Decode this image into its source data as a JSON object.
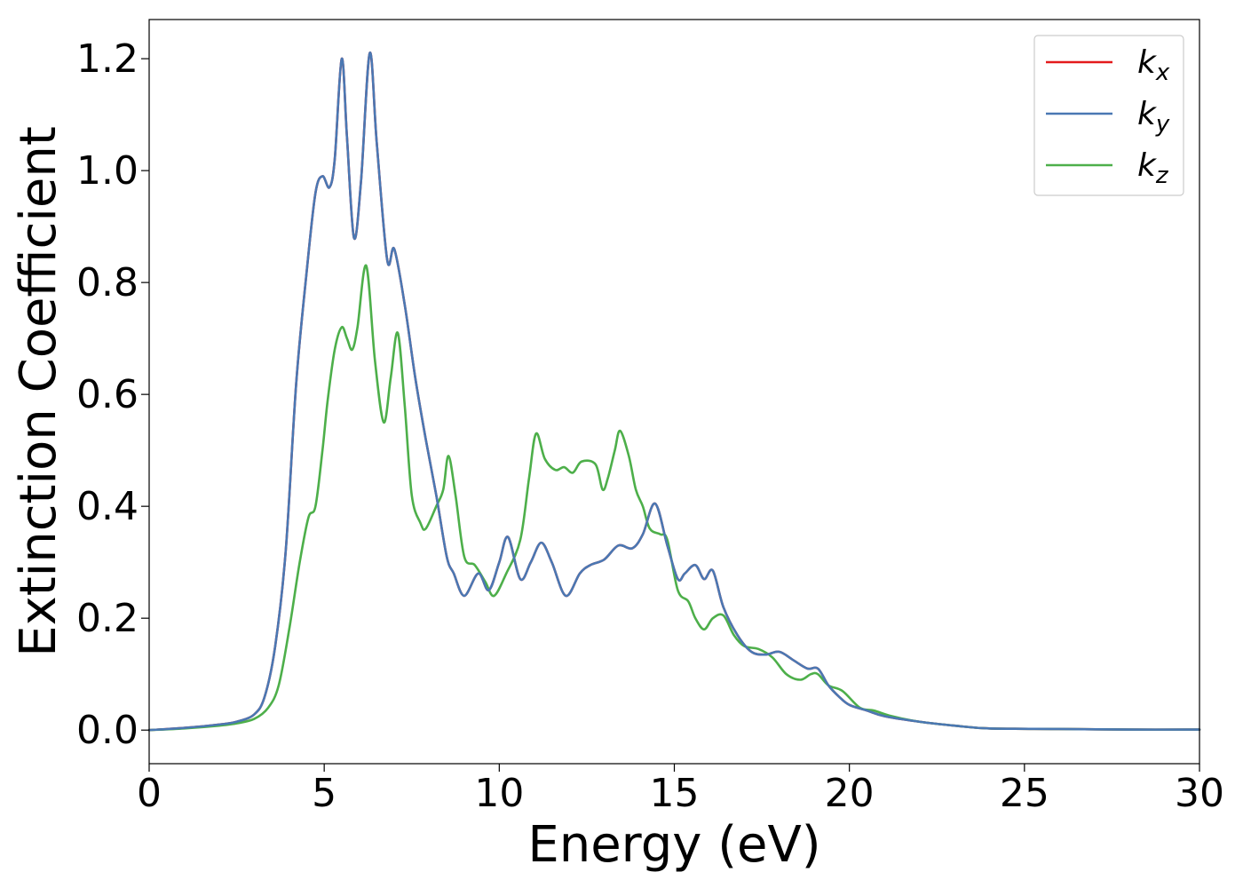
{
  "chart_data": {
    "type": "line",
    "xlabel": "Energy (eV)",
    "ylabel": "Extinction Coefficient",
    "xlim": [
      0,
      30
    ],
    "ylim": [
      -0.06,
      1.27
    ],
    "xticks": [
      0,
      5,
      10,
      15,
      20,
      25,
      30
    ],
    "xtick_labels": [
      "0",
      "5",
      "10",
      "15",
      "20",
      "25",
      "30"
    ],
    "yticks": [
      0.0,
      0.2,
      0.4,
      0.6,
      0.8,
      1.0,
      1.2
    ],
    "ytick_labels": [
      "0.0",
      "0.2",
      "0.4",
      "0.6",
      "0.8",
      "1.0",
      "1.2"
    ],
    "grid": false,
    "legend_position": "top-right",
    "series": [
      {
        "name": "k_x",
        "legend_base": "k",
        "legend_sub": "x",
        "color": "#e41a1c",
        "x": [
          0,
          1,
          2,
          2.5,
          3,
          3.3,
          3.6,
          3.9,
          4.2,
          4.5,
          4.75,
          4.95,
          5.15,
          5.3,
          5.5,
          5.65,
          5.85,
          6.05,
          6.3,
          6.5,
          6.8,
          7.0,
          7.3,
          7.6,
          7.9,
          8.2,
          8.5,
          8.7,
          9.0,
          9.4,
          9.7,
          10.0,
          10.25,
          10.6,
          10.9,
          11.2,
          11.5,
          11.9,
          12.3,
          12.6,
          13.0,
          13.4,
          13.8,
          14.1,
          14.45,
          14.8,
          15.1,
          15.3,
          15.6,
          15.85,
          16.1,
          16.4,
          16.8,
          17.2,
          17.6,
          18.0,
          18.4,
          18.8,
          19.1,
          19.4,
          19.7,
          20.0,
          20.5,
          21.0,
          22.0,
          23.0,
          24.0,
          26.0,
          28.0,
          30.0
        ],
        "y": [
          0,
          0.004,
          0.01,
          0.015,
          0.028,
          0.06,
          0.15,
          0.32,
          0.62,
          0.82,
          0.96,
          0.99,
          0.97,
          1.02,
          1.2,
          1.06,
          0.88,
          0.98,
          1.21,
          1.05,
          0.84,
          0.86,
          0.76,
          0.63,
          0.52,
          0.42,
          0.31,
          0.28,
          0.24,
          0.28,
          0.25,
          0.3,
          0.345,
          0.27,
          0.3,
          0.335,
          0.3,
          0.24,
          0.28,
          0.295,
          0.305,
          0.33,
          0.325,
          0.35,
          0.405,
          0.33,
          0.27,
          0.28,
          0.295,
          0.27,
          0.285,
          0.22,
          0.17,
          0.14,
          0.135,
          0.14,
          0.125,
          0.11,
          0.11,
          0.08,
          0.06,
          0.045,
          0.035,
          0.025,
          0.015,
          0.008,
          0.003,
          0.002,
          0.001,
          0.001
        ]
      },
      {
        "name": "k_y",
        "legend_base": "k",
        "legend_sub": "y",
        "color": "#4a78b3",
        "x": [
          0,
          1,
          2,
          2.5,
          3,
          3.3,
          3.6,
          3.9,
          4.2,
          4.5,
          4.75,
          4.95,
          5.15,
          5.3,
          5.5,
          5.65,
          5.85,
          6.05,
          6.3,
          6.5,
          6.8,
          7.0,
          7.3,
          7.6,
          7.9,
          8.2,
          8.5,
          8.7,
          9.0,
          9.4,
          9.7,
          10.0,
          10.25,
          10.6,
          10.9,
          11.2,
          11.5,
          11.9,
          12.3,
          12.6,
          13.0,
          13.4,
          13.8,
          14.1,
          14.45,
          14.8,
          15.1,
          15.3,
          15.6,
          15.85,
          16.1,
          16.4,
          16.8,
          17.2,
          17.6,
          18.0,
          18.4,
          18.8,
          19.1,
          19.4,
          19.7,
          20.0,
          20.5,
          21.0,
          22.0,
          23.0,
          24.0,
          26.0,
          28.0,
          30.0
        ],
        "y": [
          0,
          0.004,
          0.01,
          0.015,
          0.028,
          0.06,
          0.15,
          0.32,
          0.62,
          0.82,
          0.96,
          0.99,
          0.97,
          1.02,
          1.2,
          1.06,
          0.88,
          0.98,
          1.21,
          1.05,
          0.84,
          0.86,
          0.76,
          0.63,
          0.52,
          0.42,
          0.31,
          0.28,
          0.24,
          0.28,
          0.25,
          0.3,
          0.345,
          0.27,
          0.3,
          0.335,
          0.3,
          0.24,
          0.28,
          0.295,
          0.305,
          0.33,
          0.325,
          0.35,
          0.405,
          0.33,
          0.27,
          0.28,
          0.295,
          0.27,
          0.285,
          0.22,
          0.17,
          0.14,
          0.135,
          0.14,
          0.125,
          0.11,
          0.11,
          0.08,
          0.06,
          0.045,
          0.035,
          0.025,
          0.015,
          0.008,
          0.003,
          0.002,
          0.001,
          0.001
        ]
      },
      {
        "name": "k_z",
        "legend_base": "k",
        "legend_sub": "z",
        "color": "#4daf4a",
        "x": [
          0,
          1,
          2,
          2.5,
          3,
          3.4,
          3.7,
          4.0,
          4.3,
          4.55,
          4.75,
          4.95,
          5.1,
          5.3,
          5.5,
          5.65,
          5.8,
          5.95,
          6.2,
          6.45,
          6.7,
          6.9,
          7.1,
          7.3,
          7.5,
          7.75,
          7.9,
          8.2,
          8.4,
          8.55,
          8.75,
          9.0,
          9.3,
          9.6,
          9.85,
          10.2,
          10.6,
          10.85,
          11.05,
          11.3,
          11.6,
          11.85,
          12.1,
          12.35,
          12.75,
          12.95,
          13.1,
          13.3,
          13.45,
          13.7,
          13.9,
          14.1,
          14.3,
          14.6,
          14.8,
          15.1,
          15.4,
          15.6,
          15.85,
          16.1,
          16.4,
          16.7,
          17.0,
          17.4,
          17.8,
          18.2,
          18.6,
          18.9,
          19.1,
          19.4,
          19.8,
          20.3,
          20.7,
          21.2,
          22.0,
          23.0,
          24.0,
          26.0,
          28.0,
          30.0
        ],
        "y": [
          0,
          0.003,
          0.008,
          0.012,
          0.02,
          0.04,
          0.08,
          0.18,
          0.3,
          0.38,
          0.4,
          0.5,
          0.59,
          0.68,
          0.72,
          0.7,
          0.68,
          0.72,
          0.83,
          0.66,
          0.55,
          0.63,
          0.71,
          0.58,
          0.42,
          0.37,
          0.36,
          0.4,
          0.43,
          0.49,
          0.42,
          0.31,
          0.295,
          0.265,
          0.24,
          0.28,
          0.34,
          0.45,
          0.53,
          0.485,
          0.465,
          0.47,
          0.46,
          0.48,
          0.475,
          0.43,
          0.45,
          0.5,
          0.535,
          0.49,
          0.43,
          0.4,
          0.36,
          0.35,
          0.34,
          0.25,
          0.23,
          0.2,
          0.18,
          0.2,
          0.205,
          0.17,
          0.15,
          0.145,
          0.13,
          0.1,
          0.09,
          0.1,
          0.1,
          0.08,
          0.07,
          0.04,
          0.035,
          0.025,
          0.015,
          0.008,
          0.003,
          0.002,
          0.001,
          0.001
        ]
      }
    ]
  }
}
